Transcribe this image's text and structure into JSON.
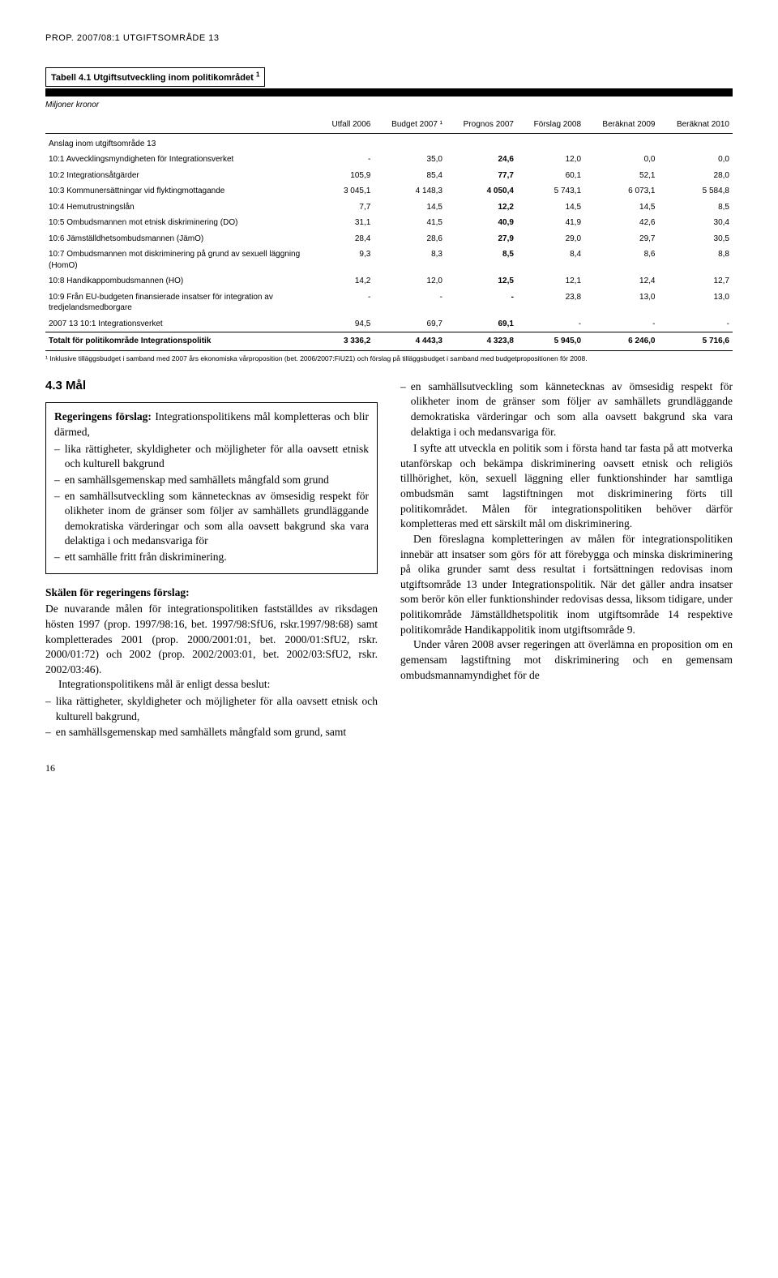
{
  "header": "PROP. 2007/08:1 UTGIFTSOMRÅDE 13",
  "table": {
    "title": "Tabell 4.1 Utgiftsutveckling inom politikområdet",
    "title_sup": "1",
    "subtitle": "Miljoner kronor",
    "columns": [
      "",
      "Utfall 2006",
      "Budget 2007 ¹",
      "Prognos 2007",
      "Förslag 2008",
      "Beräknat 2009",
      "Beräknat 2010"
    ],
    "section_label": "Anslag inom utgiftsområde 13",
    "rows": [
      {
        "label": "10:1 Avvecklingsmyndigheten för Integrationsverket",
        "v": [
          "-",
          "35,0",
          "24,6",
          "12,0",
          "0,0",
          "0,0"
        ]
      },
      {
        "label": "10:2 Integrationsåtgärder",
        "v": [
          "105,9",
          "85,4",
          "77,7",
          "60,1",
          "52,1",
          "28,0"
        ]
      },
      {
        "label": "10:3 Kommunersättningar vid flyktingmottagande",
        "v": [
          "3 045,1",
          "4 148,3",
          "4 050,4",
          "5 743,1",
          "6 073,1",
          "5 584,8"
        ]
      },
      {
        "label": "10:4 Hemutrustningslån",
        "v": [
          "7,7",
          "14,5",
          "12,2",
          "14,5",
          "14,5",
          "8,5"
        ]
      },
      {
        "label": "10:5 Ombudsmannen mot etnisk diskriminering (DO)",
        "v": [
          "31,1",
          "41,5",
          "40,9",
          "41,9",
          "42,6",
          "30,4"
        ]
      },
      {
        "label": "10:6 Jämställdhetsombudsmannen (JämO)",
        "v": [
          "28,4",
          "28,6",
          "27,9",
          "29,0",
          "29,7",
          "30,5"
        ]
      },
      {
        "label": "10:7 Ombudsmannen mot diskriminering på grund av sexuell läggning (HomO)",
        "v": [
          "9,3",
          "8,3",
          "8,5",
          "8,4",
          "8,6",
          "8,8"
        ]
      },
      {
        "label": "10:8 Handikappombudsmannen (HO)",
        "v": [
          "14,2",
          "12,0",
          "12,5",
          "12,1",
          "12,4",
          "12,7"
        ]
      },
      {
        "label": "10:9 Från EU-budgeten finansierade insatser för integration av tredjelandsmedborgare",
        "v": [
          "-",
          "-",
          "-",
          "23,8",
          "13,0",
          "13,0"
        ]
      },
      {
        "label": "2007 13 10:1 Integrationsverket",
        "v": [
          "94,5",
          "69,7",
          "69,1",
          "-",
          "-",
          "-"
        ]
      }
    ],
    "total": {
      "label": "Totalt för politikområde Integrationspolitik",
      "v": [
        "3 336,2",
        "4 443,3",
        "4 323,8",
        "5 945,0",
        "6 246,0",
        "5 716,6"
      ]
    },
    "footnote": "¹ Inklusive tilläggsbudget i samband med 2007 års ekonomiska vårproposition (bet. 2006/2007:FiU21) och förslag på tilläggsbudget i samband med budgetpropositionen för 2008."
  },
  "left": {
    "heading": "4.3    Mål",
    "box_intro": "Regeringens förslag: Integrationspolitikens mål kompletteras och blir därmed,",
    "box_bullets": [
      "lika rättigheter, skyldigheter och möjligheter för alla oavsett etnisk och kulturell bakgrund",
      "en samhällsgemenskap med samhällets mångfald som grund",
      "en samhällsutveckling som kännetecknas av ömsesidig respekt för olikheter inom de gränser som följer av samhällets grundläggande demokratiska värderingar och som alla oavsett bakgrund ska vara delaktiga i och medansvariga för",
      "ett samhälle fritt från diskriminering."
    ],
    "subhead": "Skälen för regeringens förslag:",
    "p1": "De nuvarande målen för integrationspolitiken fastställdes av riksdagen hösten 1997 (prop. 1997/98:16, bet. 1997/98:SfU6, rskr.1997/98:68) samt kompletterades 2001 (prop. 2000/2001:01, bet. 2000/01:SfU2, rskr. 2000/01:72) och 2002 (prop. 2002/2003:01, bet. 2002/03:SfU2, rskr. 2002/03:46).",
    "p2": "Integrationspolitikens mål är enligt dessa beslut:",
    "bottom_bullets": [
      "lika rättigheter, skyldigheter och möjligheter för alla oavsett etnisk och kulturell bakgrund,",
      "en samhällsgemenskap med samhällets mångfald som grund, samt"
    ]
  },
  "right": {
    "top_bullet": "en samhällsutveckling som kännetecknas av ömsesidig respekt för olikheter inom de gränser som följer av samhällets grundläggande demokratiska värderingar och som alla oavsett bakgrund ska vara delaktiga i och medansvariga för.",
    "p1": "I syfte att utveckla en politik som i första hand tar fasta på att motverka utanförskap och bekämpa diskriminering oavsett etnisk och religiös tillhörighet, kön, sexuell läggning eller funktionshinder har samtliga ombudsmän samt lagstiftningen mot diskriminering förts till politikområdet. Målen för integrationspolitiken behöver därför kompletteras med ett särskilt mål om diskriminering.",
    "p2": "Den föreslagna kompletteringen av målen för integrationspolitiken innebär att insatser som görs för att förebygga och minska diskriminering på olika grunder samt dess resultat i fortsättningen redovisas inom utgiftsområde 13 under Integrationspolitik. När det gäller andra insatser som berör kön eller funktionshinder redovisas dessa, liksom tidigare, under politikområde Jämställdhetspolitik inom utgiftsområde 14 respektive politikområde Handikappolitik inom utgiftsområde 9.",
    "p3": "Under våren 2008 avser regeringen att överlämna en proposition om en gemensam lagstiftning mot diskriminering och en gemensam ombudsmannamyndighet för de"
  },
  "pagenum": "16"
}
